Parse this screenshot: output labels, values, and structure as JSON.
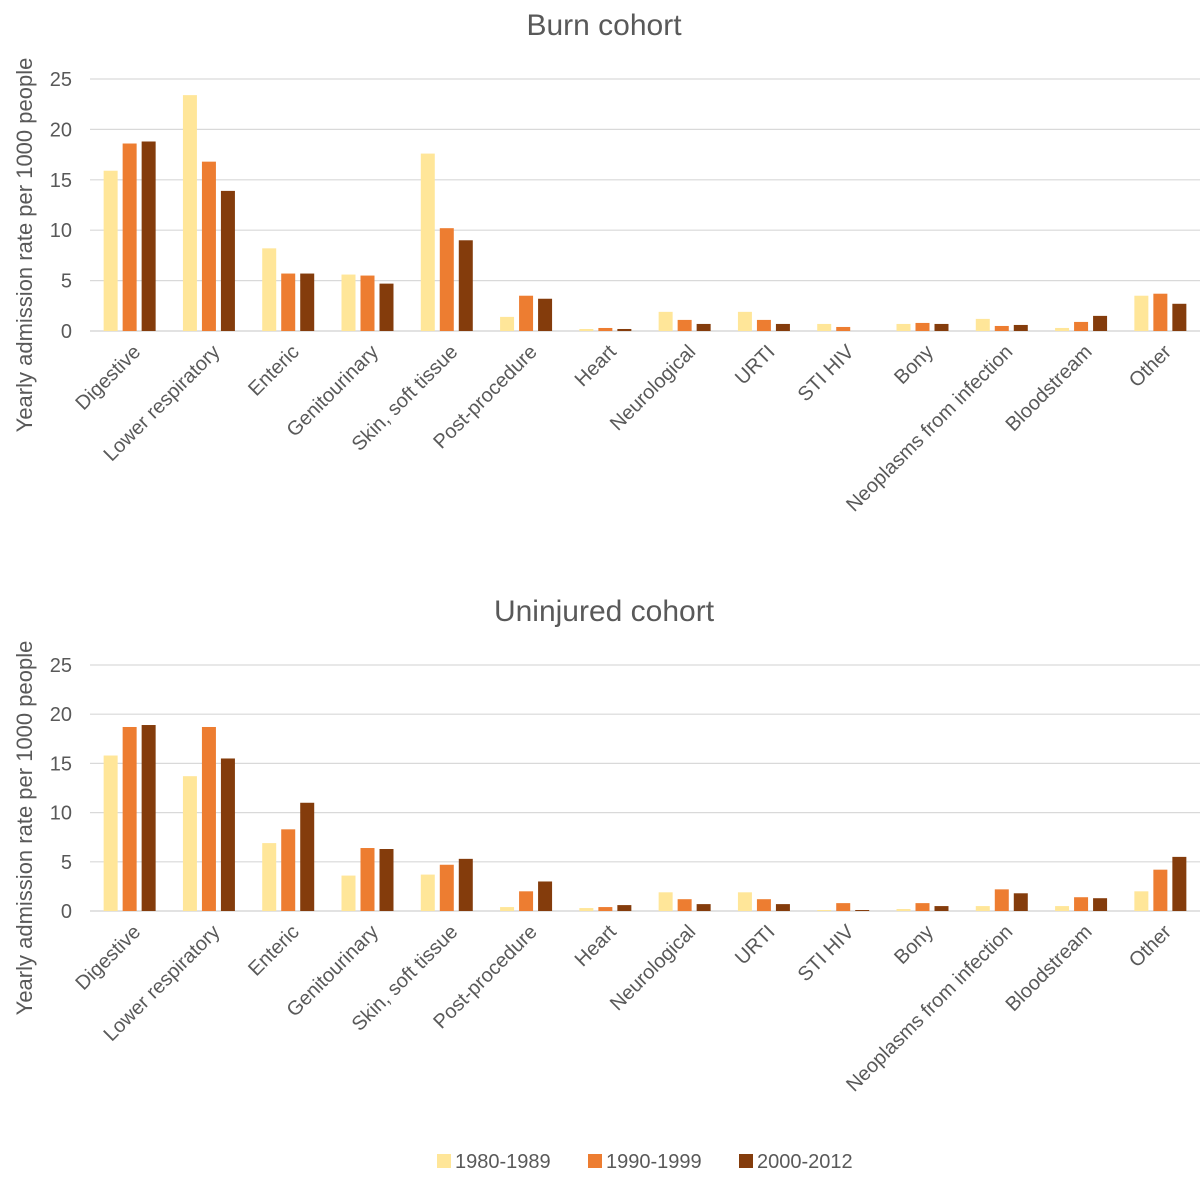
{
  "legend": {
    "entries": [
      "1980-1989",
      "1990-1999",
      "2000-2012"
    ],
    "colors": [
      "#FFE699",
      "#ED7D31",
      "#843C0C"
    ],
    "placement": "bottom"
  },
  "chart_data": [
    {
      "type": "bar",
      "title": "Burn cohort",
      "ylabel": "Yearly admission rate per 1000 people",
      "xlabel": "",
      "ylim": [
        0,
        25
      ],
      "yticks": [
        0,
        5,
        10,
        15,
        20,
        25
      ],
      "grid": true,
      "categories": [
        "Digestive",
        "Lower respiratory",
        "Enteric",
        "Genitourinary",
        "Skin, soft tissue",
        "Post-procedure",
        "Heart",
        "Neurological",
        "URTI",
        "STI HIV",
        "Bony",
        "Neoplasms from infection",
        "Bloodstream",
        "Other"
      ],
      "series": [
        {
          "name": "1980-1989",
          "color": "#FFE699",
          "values": [
            15.9,
            23.4,
            8.2,
            5.6,
            17.6,
            1.4,
            0.2,
            1.9,
            1.9,
            0.7,
            0.7,
            1.2,
            0.3,
            3.5
          ]
        },
        {
          "name": "1990-1999",
          "color": "#ED7D31",
          "values": [
            18.6,
            16.8,
            5.7,
            5.5,
            10.2,
            3.5,
            0.3,
            1.1,
            1.1,
            0.4,
            0.8,
            0.5,
            0.9,
            3.7
          ]
        },
        {
          "name": "2000-2012",
          "color": "#843C0C",
          "values": [
            18.8,
            13.9,
            5.7,
            4.7,
            9.0,
            3.2,
            0.2,
            0.7,
            0.7,
            0.0,
            0.7,
            0.6,
            1.5,
            2.7
          ]
        }
      ]
    },
    {
      "type": "bar",
      "title": "Uninjured cohort",
      "ylabel": "Yearly admission rate per 1000 people",
      "xlabel": "",
      "ylim": [
        0,
        25
      ],
      "yticks": [
        0,
        5,
        10,
        15,
        20,
        25
      ],
      "grid": true,
      "categories": [
        "Digestive",
        "Lower respiratory",
        "Enteric",
        "Genitourinary",
        "Skin, soft tissue",
        "Post-procedure",
        "Heart",
        "Neurological",
        "URTI",
        "STI HIV",
        "Bony",
        "Neoplasms from infection",
        "Bloodstream",
        "Other"
      ],
      "series": [
        {
          "name": "1980-1989",
          "color": "#FFE699",
          "values": [
            15.8,
            13.7,
            6.9,
            3.6,
            3.7,
            0.4,
            0.3,
            1.9,
            1.9,
            0.1,
            0.2,
            0.5,
            0.5,
            2.0
          ]
        },
        {
          "name": "1990-1999",
          "color": "#ED7D31",
          "values": [
            18.7,
            18.7,
            8.3,
            6.4,
            4.7,
            2.0,
            0.4,
            1.2,
            1.2,
            0.8,
            0.8,
            2.2,
            1.4,
            4.2
          ]
        },
        {
          "name": "2000-2012",
          "color": "#843C0C",
          "values": [
            18.9,
            15.5,
            11.0,
            6.3,
            5.3,
            3.0,
            0.6,
            0.7,
            0.7,
            0.1,
            0.5,
            1.8,
            1.3,
            5.5
          ]
        }
      ]
    }
  ]
}
